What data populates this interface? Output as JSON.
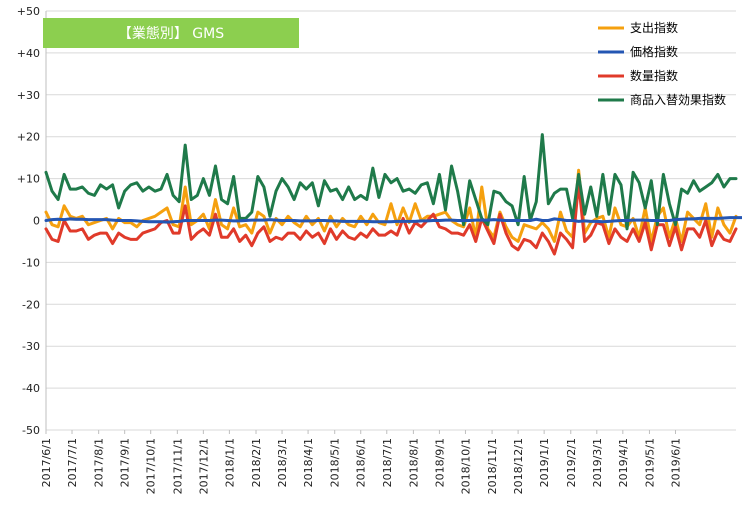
{
  "chart_data": {
    "type": "line",
    "title": "【業態別】 GMS",
    "title_bg": "#8ccf4f",
    "ylim": [
      -50,
      50
    ],
    "y_ticks": [
      "+50",
      "+40",
      "+30",
      "+20",
      "+10",
      "0",
      "-10",
      "-20",
      "-30",
      "-40",
      "-50"
    ],
    "y_tick_values": [
      50,
      40,
      30,
      20,
      10,
      0,
      -10,
      -20,
      -30,
      -40,
      -50
    ],
    "x_tick_labels": [
      "2017/6/1",
      "2017/7/1",
      "2017/8/1",
      "2017/9/1",
      "2017/10/1",
      "2017/11/1",
      "2017/12/1",
      "2018/1/1",
      "2018/2/1",
      "2018/3/1",
      "2018/4/1",
      "2018/5/1",
      "2018/6/1",
      "2018/7/1",
      "2018/8/1",
      "2018/9/1",
      "2018/10/1",
      "2018/11/1",
      "2018/12/1",
      "2019/1/1",
      "2019/2/1",
      "2019/3/1",
      "2019/4/1",
      "2019/5/1",
      "2019/6/1"
    ],
    "x_tick_positions": [
      0,
      4.3,
      8.7,
      13,
      17.3,
      21.7,
      26,
      30.3,
      34.7,
      39,
      43.3,
      47.7,
      52,
      56.3,
      60.7,
      65,
      69.3,
      73.7,
      78,
      82.3,
      86.7,
      91,
      95.3,
      99.7,
      104
    ],
    "x_period_note": "",
    "grid": true,
    "legend_position": "top-right",
    "series": [
      {
        "name": "支出指数",
        "color": "#f5a00f",
        "values": [
          2,
          -1,
          -1.5,
          3.5,
          1,
          0.5,
          1,
          -1,
          -0.5,
          0,
          0.5,
          -2,
          0.5,
          -0.5,
          -0.5,
          -1.5,
          0,
          0.5,
          1,
          2,
          3,
          -1,
          -1.5,
          8,
          -1,
          0,
          1.5,
          -2,
          5,
          -1,
          -2,
          3,
          -1.5,
          -1,
          -3,
          2,
          1,
          -3,
          0.5,
          -1,
          1,
          -0.5,
          -1.5,
          1,
          -1,
          0.5,
          -2.5,
          1,
          -1.5,
          0.5,
          -1,
          -1.5,
          1,
          -1,
          1.5,
          -0.5,
          -1,
          4,
          -1,
          3,
          -0.5,
          4,
          0,
          1,
          1,
          1.5,
          2,
          0,
          -1,
          -1.5,
          3,
          -4,
          8,
          -2,
          -4,
          2,
          -1.5,
          -4,
          -5,
          -1,
          -1.5,
          -2,
          -0.5,
          -2,
          -5,
          2,
          -2.5,
          -4,
          12,
          -3,
          -0.5,
          0.5,
          1,
          -4,
          3,
          -1,
          -1.5,
          0.5,
          -4,
          3,
          -5,
          1,
          3,
          -4,
          0.5,
          -5,
          2,
          0.5,
          -1,
          4,
          -4,
          3,
          -1,
          -3,
          1
        ]
      },
      {
        "name": "価格指数",
        "color": "#2456b3",
        "values": [
          0,
          0.2,
          0.3,
          0.2,
          0.4,
          0.3,
          0.3,
          0.2,
          0.2,
          0.2,
          0.2,
          0.1,
          0,
          0,
          0,
          -0.1,
          -0.2,
          -0.3,
          -0.3,
          -0.3,
          -0.4,
          -0.3,
          -0.2,
          0,
          0,
          0,
          0,
          0,
          0.1,
          0.1,
          0,
          -0.1,
          -0.1,
          0,
          0.1,
          0.1,
          0.1,
          0.2,
          0.1,
          0,
          0,
          0,
          -0.1,
          -0.1,
          -0.1,
          0,
          0,
          -0.1,
          -0.1,
          -0.2,
          -0.2,
          -0.2,
          -0.2,
          -0.2,
          -0.3,
          -0.3,
          -0.3,
          -0.3,
          -0.2,
          -0.2,
          -0.2,
          -0.2,
          -0.1,
          -0.1,
          0,
          0,
          0.1,
          0.1,
          0,
          0,
          0,
          0.1,
          0.1,
          0.1,
          0.2,
          0.1,
          0,
          0,
          0,
          0,
          0,
          0.3,
          0,
          0,
          0.4,
          0.2,
          0,
          0,
          -0.2,
          -0.1,
          -0.2,
          -0.2,
          -0.3,
          -0.2,
          -0.1,
          0,
          0,
          0.1,
          0.1,
          0.1,
          0,
          0,
          0,
          0,
          0.2,
          0.3,
          0.4,
          0.4,
          0.5,
          0.5,
          0.5,
          0.5,
          0.6,
          0.7,
          0.7,
          0.7
        ]
      },
      {
        "name": "数量指数",
        "color": "#e03a2a",
        "values": [
          -2,
          -4.5,
          -5,
          0,
          -2.5,
          -2.5,
          -2,
          -4.5,
          -3.5,
          -3,
          -3,
          -5.5,
          -3,
          -4,
          -4.5,
          -4.5,
          -3,
          -2.5,
          -2,
          -0.5,
          0,
          -3,
          -3,
          3.5,
          -4.5,
          -3,
          -2,
          -3.5,
          1.5,
          -4,
          -4,
          -2,
          -5,
          -3.5,
          -6,
          -3,
          -1.5,
          -5,
          -4,
          -4.5,
          -3,
          -3,
          -4.5,
          -2.5,
          -4,
          -3,
          -5.5,
          -2,
          -4.5,
          -2.5,
          -4,
          -4.5,
          -3,
          -4,
          -2,
          -3.5,
          -3.5,
          -2.5,
          -3.5,
          0.5,
          -3,
          -0.5,
          -1.5,
          0,
          1.5,
          -1.5,
          -2,
          -3,
          -3,
          -3.5,
          -1,
          -5,
          0.5,
          -2.5,
          -5.5,
          1.5,
          -3,
          -6,
          -7,
          -4.5,
          -5,
          -6.5,
          -3,
          -5,
          -8,
          -3,
          -4.5,
          -6.5,
          9,
          -5,
          -3.5,
          -0.5,
          -1,
          -5.5,
          -2,
          -4,
          -5,
          -2,
          -5,
          -0.5,
          -7,
          -1,
          -1,
          -6,
          -1.5,
          -7,
          -2,
          -2,
          -4,
          0,
          -6,
          -2.5,
          -4.5,
          -5,
          -2
        ]
      },
      {
        "name": "商品入替効果指数",
        "color": "#1f7a4a",
        "values": [
          11.5,
          7,
          5,
          11,
          7.5,
          7.5,
          8,
          6.5,
          6,
          8.5,
          7.5,
          8.5,
          3,
          7,
          8.5,
          9,
          7,
          8,
          7,
          7.5,
          11,
          6,
          4.5,
          18,
          5,
          6,
          10,
          6,
          13,
          5,
          4,
          10.5,
          0.5,
          0.5,
          2,
          10.5,
          8,
          1,
          7,
          10,
          8,
          5,
          9,
          7.5,
          9,
          3.5,
          9.5,
          7,
          7.5,
          5,
          8,
          5,
          6,
          5,
          12.5,
          5.5,
          11,
          9,
          10,
          7,
          7.5,
          6.5,
          8.5,
          9,
          4,
          11,
          2.5,
          13,
          7,
          -1,
          9.5,
          5,
          0.5,
          -1,
          7,
          6.5,
          4.5,
          3.5,
          -1,
          10.5,
          0,
          4.5,
          20.5,
          4,
          6.5,
          7.5,
          7.5,
          0.5,
          11,
          1.5,
          8,
          1,
          11,
          1.5,
          11,
          8.5,
          -2,
          11.5,
          9,
          3,
          9.5,
          -1,
          11,
          4,
          -1,
          7.5,
          6.5,
          9.5,
          7,
          8,
          9,
          11,
          8,
          10,
          10
        ]
      }
    ]
  }
}
